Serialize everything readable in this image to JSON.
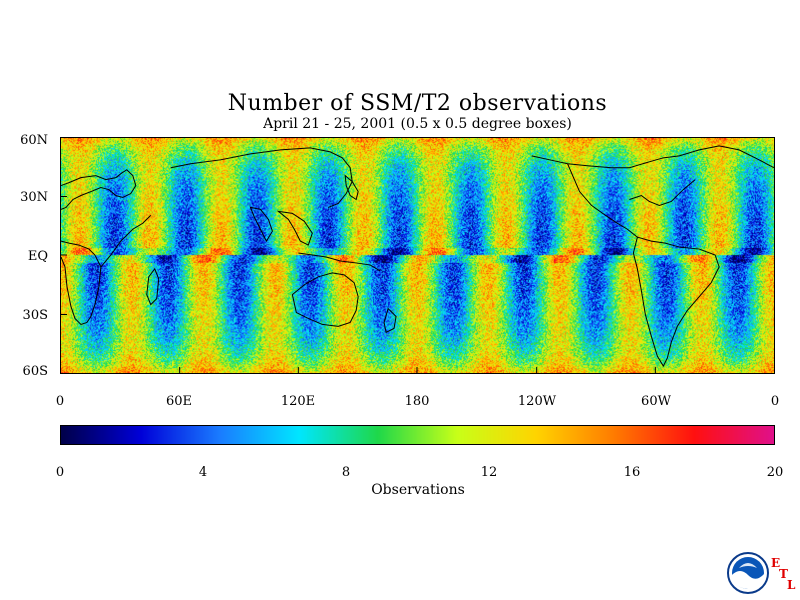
{
  "title": "Number of SSM/T2 observations",
  "subtitle": "April 21 - 25, 2001 (0.5 x 0.5 degree boxes)",
  "lat_labels": [
    "60N",
    "30N",
    "EQ",
    "30S",
    "60S"
  ],
  "lon_labels": [
    "0",
    "60E",
    "120E",
    "180",
    "120W",
    "60W",
    "0"
  ],
  "colorbar": {
    "ticks": [
      "0",
      "4",
      "8",
      "12",
      "16",
      "20"
    ],
    "title": "Observations",
    "range": [
      0,
      20
    ],
    "colors": [
      "#00004a",
      "#0000d8",
      "#1a7cff",
      "#00e6ff",
      "#1fd84a",
      "#c8ff18",
      "#ffd400",
      "#ff7a00",
      "#ff1010",
      "#e0108a"
    ]
  },
  "logo": {
    "icon": "noaa-logo",
    "letters": [
      "E",
      "T",
      "L"
    ]
  },
  "chart_data": {
    "type": "heatmap",
    "title": "Number of SSM/T2 observations",
    "subtitle": "April 21 - 25, 2001 (0.5 x 0.5 degree boxes)",
    "x_range_deg_east": [
      0,
      360
    ],
    "y_range_deg_north": [
      -60,
      60
    ],
    "value_range": [
      0,
      20
    ],
    "colorbar_label": "Observations",
    "pattern": "alternating swath bands of low (about 2-5) and high (about 11-16) counts, with dense coverage near 60S and 60N"
  }
}
